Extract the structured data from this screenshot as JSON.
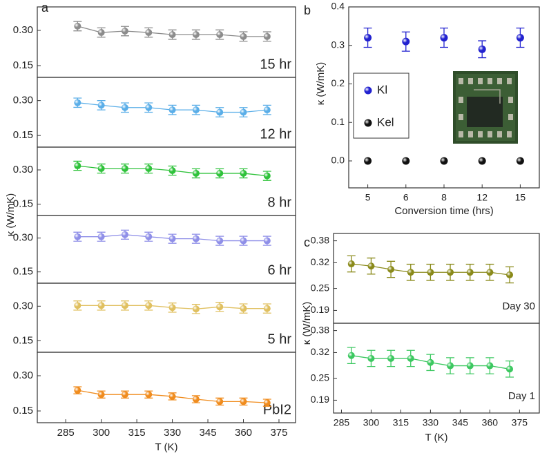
{
  "chart_data": [
    {
      "type": "line",
      "panel_label": "a",
      "annotation": "15 hr",
      "xlim": [
        273,
        382
      ],
      "ylim": [
        0.1,
        0.4
      ],
      "yticks": [
        {
          "value": 0.15,
          "label": "0.15"
        },
        {
          "value": 0.3,
          "label": "0.30"
        }
      ],
      "x": [
        290,
        300,
        310,
        320,
        330,
        340,
        350,
        360,
        370
      ],
      "series": [
        {
          "color": "#8c8c8c",
          "values": [
            0.318,
            0.291,
            0.297,
            0.291,
            0.282,
            0.282,
            0.282,
            0.274,
            0.274
          ],
          "errors": [
            0.02,
            0.02,
            0.02,
            0.02,
            0.02,
            0.02,
            0.02,
            0.02,
            0.02
          ]
        }
      ]
    },
    {
      "type": "line",
      "annotation": "12 hr",
      "xlim": [
        273,
        382
      ],
      "ylim": [
        0.1,
        0.4
      ],
      "yticks": [
        {
          "value": 0.15,
          "label": "0.15"
        },
        {
          "value": 0.3,
          "label": "0.30"
        }
      ],
      "x": [
        290,
        300,
        310,
        320,
        330,
        340,
        350,
        360,
        370
      ],
      "series": [
        {
          "color": "#5aaee8",
          "values": [
            0.291,
            0.28,
            0.27,
            0.27,
            0.26,
            0.26,
            0.25,
            0.25,
            0.26
          ],
          "errors": [
            0.02,
            0.02,
            0.02,
            0.02,
            0.02,
            0.02,
            0.02,
            0.02,
            0.02
          ]
        }
      ]
    },
    {
      "type": "line",
      "annotation": "8 hr",
      "ylabel": "κ (W/mK)",
      "xlim": [
        273,
        382
      ],
      "ylim": [
        0.1,
        0.4
      ],
      "yticks": [
        {
          "value": 0.15,
          "label": "0.15"
        },
        {
          "value": 0.3,
          "label": "0.30"
        }
      ],
      "x": [
        290,
        300,
        310,
        320,
        330,
        340,
        350,
        360,
        370
      ],
      "series": [
        {
          "color": "#2ec23a",
          "values": [
            0.318,
            0.306,
            0.306,
            0.306,
            0.297,
            0.285,
            0.285,
            0.285,
            0.274
          ],
          "errors": [
            0.02,
            0.02,
            0.02,
            0.02,
            0.02,
            0.02,
            0.02,
            0.02,
            0.02
          ]
        }
      ]
    },
    {
      "type": "line",
      "annotation": "6 hr",
      "xlim": [
        273,
        382
      ],
      "ylim": [
        0.1,
        0.4
      ],
      "yticks": [
        {
          "value": 0.15,
          "label": "0.15"
        },
        {
          "value": 0.3,
          "label": "0.30"
        }
      ],
      "x": [
        290,
        300,
        310,
        320,
        330,
        340,
        350,
        360,
        370
      ],
      "series": [
        {
          "color": "#8f8fe8",
          "values": [
            0.306,
            0.306,
            0.315,
            0.306,
            0.297,
            0.297,
            0.288,
            0.288,
            0.288
          ],
          "errors": [
            0.02,
            0.02,
            0.02,
            0.02,
            0.02,
            0.02,
            0.02,
            0.02,
            0.02
          ]
        }
      ]
    },
    {
      "type": "line",
      "annotation": "5 hr",
      "xlim": [
        273,
        382
      ],
      "ylim": [
        0.1,
        0.4
      ],
      "yticks": [
        {
          "value": 0.15,
          "label": "0.15"
        },
        {
          "value": 0.3,
          "label": "0.30"
        }
      ],
      "x": [
        290,
        300,
        310,
        320,
        330,
        340,
        350,
        360,
        370
      ],
      "series": [
        {
          "color": "#e0c060",
          "values": [
            0.303,
            0.303,
            0.303,
            0.303,
            0.294,
            0.288,
            0.297,
            0.29,
            0.29
          ],
          "errors": [
            0.02,
            0.02,
            0.02,
            0.02,
            0.02,
            0.02,
            0.02,
            0.02,
            0.02
          ]
        }
      ]
    },
    {
      "type": "line",
      "annotation": "PbI2",
      "xlabel": "T (K)",
      "xlim": [
        273,
        382
      ],
      "ylim": [
        0.1,
        0.4
      ],
      "xticks": [
        285,
        300,
        315,
        330,
        345,
        360,
        375
      ],
      "yticks": [
        {
          "value": 0.15,
          "label": "0.15"
        },
        {
          "value": 0.3,
          "label": "0.30"
        }
      ],
      "x": [
        290,
        300,
        310,
        320,
        330,
        340,
        350,
        360,
        370
      ],
      "series": [
        {
          "color": "#f08c1e",
          "values": [
            0.238,
            0.22,
            0.22,
            0.22,
            0.212,
            0.2,
            0.19,
            0.19,
            0.185
          ],
          "errors": [
            0.015,
            0.015,
            0.015,
            0.015,
            0.015,
            0.015,
            0.015,
            0.015,
            0.015
          ]
        }
      ]
    },
    {
      "type": "scatter",
      "panel_label": "b",
      "xlabel": "Conversion time (hrs)",
      "ylabel": "κ (W/mK)",
      "categories": [
        "5",
        "6",
        "8",
        "12",
        "15"
      ],
      "ylim": [
        -0.07,
        0.4
      ],
      "yticks": [
        {
          "value": 0,
          "label": "0.0"
        },
        0.1,
        0.2,
        0.3,
        0.4
      ],
      "series": [
        {
          "name": "Kl",
          "color": "#2222d0",
          "values": [
            0.32,
            0.31,
            0.32,
            0.29,
            0.32
          ],
          "errors": [
            0.025,
            0.025,
            0.025,
            0.022,
            0.025
          ]
        },
        {
          "name": "Kel",
          "color": "#111111",
          "values": [
            0,
            0,
            0,
            0,
            0
          ]
        }
      ]
    },
    {
      "type": "line",
      "panel_label": "c",
      "annotation": "Day 30",
      "ylabel": "κ (W/mK)",
      "xlim": [
        281,
        385
      ],
      "ylim": [
        0.155,
        0.4
      ],
      "yticks": [
        0.19,
        0.25,
        0.32,
        0.38
      ],
      "x": [
        290,
        300,
        310,
        320,
        330,
        340,
        350,
        360,
        370
      ],
      "series": [
        {
          "color": "#8a8a1a",
          "values": [
            0.317,
            0.311,
            0.302,
            0.294,
            0.294,
            0.294,
            0.294,
            0.294,
            0.287
          ],
          "errors": [
            0.022,
            0.022,
            0.022,
            0.022,
            0.022,
            0.022,
            0.022,
            0.022,
            0.022
          ]
        }
      ]
    },
    {
      "type": "line",
      "annotation": "Day 1",
      "xlabel": "T (K)",
      "ylabel": "κ (W/mK)",
      "xlim": [
        281,
        385
      ],
      "ylim": [
        0.155,
        0.4
      ],
      "xticks": [
        285,
        300,
        315,
        330,
        345,
        360,
        375
      ],
      "yticks": [
        0.19,
        0.25,
        0.32,
        0.38
      ],
      "x": [
        290,
        300,
        310,
        320,
        330,
        340,
        350,
        360,
        370
      ],
      "series": [
        {
          "color": "#3cc860",
          "values": [
            0.312,
            0.304,
            0.304,
            0.304,
            0.293,
            0.284,
            0.284,
            0.284,
            0.275
          ],
          "errors": [
            0.022,
            0.022,
            0.022,
            0.022,
            0.022,
            0.022,
            0.022,
            0.022,
            0.022
          ]
        }
      ]
    }
  ]
}
